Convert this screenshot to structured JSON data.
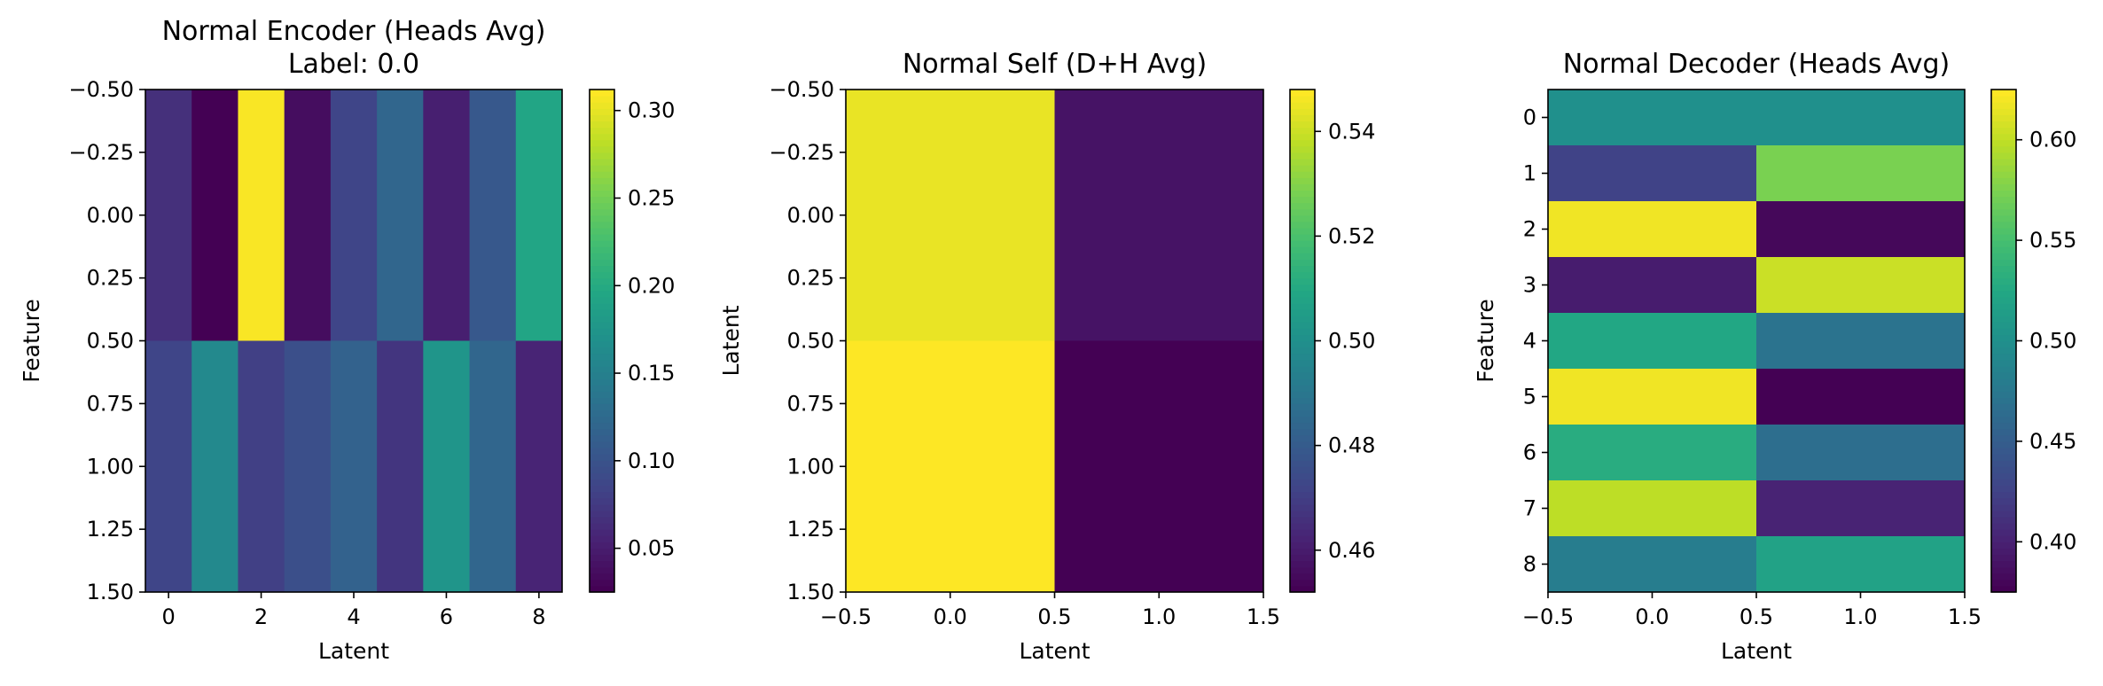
{
  "colormap": "viridis",
  "chart_data": [
    {
      "type": "heatmap",
      "title": [
        "Normal Encoder (Heads Avg)",
        "Label: 0.0"
      ],
      "xlabel": "Latent",
      "ylabel": "Feature",
      "xlim": [
        -0.5,
        8.5
      ],
      "ylim": [
        1.5,
        -0.5
      ],
      "xticks": [
        0,
        2,
        4,
        6,
        8
      ],
      "xtick_labels": [
        "0",
        "2",
        "4",
        "6",
        "8"
      ],
      "yticks": [
        -0.5,
        -0.25,
        0.0,
        0.25,
        0.5,
        0.75,
        1.0,
        1.25,
        1.5
      ],
      "ytick_labels": [
        "−0.50",
        "−0.25",
        "0.00",
        "0.25",
        "0.50",
        "0.75",
        "1.00",
        "1.25",
        "1.50"
      ],
      "matrix": [
        [
          0.065,
          0.025,
          0.31,
          0.035,
          0.085,
          0.12,
          0.05,
          0.105,
          0.195
        ],
        [
          0.085,
          0.16,
          0.08,
          0.095,
          0.115,
          0.07,
          0.175,
          0.12,
          0.055
        ]
      ],
      "vmin": 0.025,
      "vmax": 0.312,
      "colorbar_ticks": [
        0.05,
        0.1,
        0.15,
        0.2,
        0.25,
        0.3
      ],
      "colorbar_tick_labels": [
        "0.05",
        "0.10",
        "0.15",
        "0.20",
        "0.25",
        "0.30"
      ]
    },
    {
      "type": "heatmap",
      "title": [
        "Normal Self (D+H Avg)"
      ],
      "xlabel": "Latent",
      "ylabel": "Latent",
      "xlim": [
        -0.5,
        1.5
      ],
      "ylim": [
        1.5,
        -0.5
      ],
      "xticks": [
        -0.5,
        0.0,
        0.5,
        1.0,
        1.5
      ],
      "xtick_labels": [
        "−0.5",
        "0.0",
        "0.5",
        "1.0",
        "1.5"
      ],
      "yticks": [
        -0.5,
        -0.25,
        0.0,
        0.25,
        0.5,
        0.75,
        1.0,
        1.25,
        1.5
      ],
      "ytick_labels": [
        "−0.50",
        "−0.25",
        "0.00",
        "0.25",
        "0.50",
        "0.75",
        "1.00",
        "1.25",
        "1.50"
      ],
      "matrix": [
        [
          0.545,
          0.457
        ],
        [
          0.548,
          0.452
        ]
      ],
      "vmin": 0.452,
      "vmax": 0.548,
      "colorbar_ticks": [
        0.46,
        0.48,
        0.5,
        0.52,
        0.54
      ],
      "colorbar_tick_labels": [
        "0.46",
        "0.48",
        "0.50",
        "0.52",
        "0.54"
      ]
    },
    {
      "type": "heatmap",
      "title": [
        "Normal Decoder (Heads Avg)"
      ],
      "xlabel": "Latent",
      "ylabel": "Feature",
      "xlim": [
        -0.5,
        1.5
      ],
      "ylim": [
        8.5,
        -0.5
      ],
      "xticks": [
        -0.5,
        0.0,
        0.5,
        1.0,
        1.5
      ],
      "xtick_labels": [
        "−0.5",
        "0.0",
        "0.5",
        "1.0",
        "1.5"
      ],
      "yticks": [
        0,
        1,
        2,
        3,
        4,
        5,
        6,
        7,
        8
      ],
      "ytick_labels": [
        "0",
        "1",
        "2",
        "3",
        "4",
        "5",
        "6",
        "7",
        "8"
      ],
      "matrix": [
        [
          0.5,
          0.5
        ],
        [
          0.425,
          0.575
        ],
        [
          0.62,
          0.38
        ],
        [
          0.395,
          0.605
        ],
        [
          0.525,
          0.47
        ],
        [
          0.62,
          0.375
        ],
        [
          0.53,
          0.465
        ],
        [
          0.6,
          0.4
        ],
        [
          0.48,
          0.52
        ]
      ],
      "vmin": 0.375,
      "vmax": 0.625,
      "colorbar_ticks": [
        0.4,
        0.45,
        0.5,
        0.55,
        0.6
      ],
      "colorbar_tick_labels": [
        "0.40",
        "0.45",
        "0.50",
        "0.55",
        "0.60"
      ]
    }
  ]
}
